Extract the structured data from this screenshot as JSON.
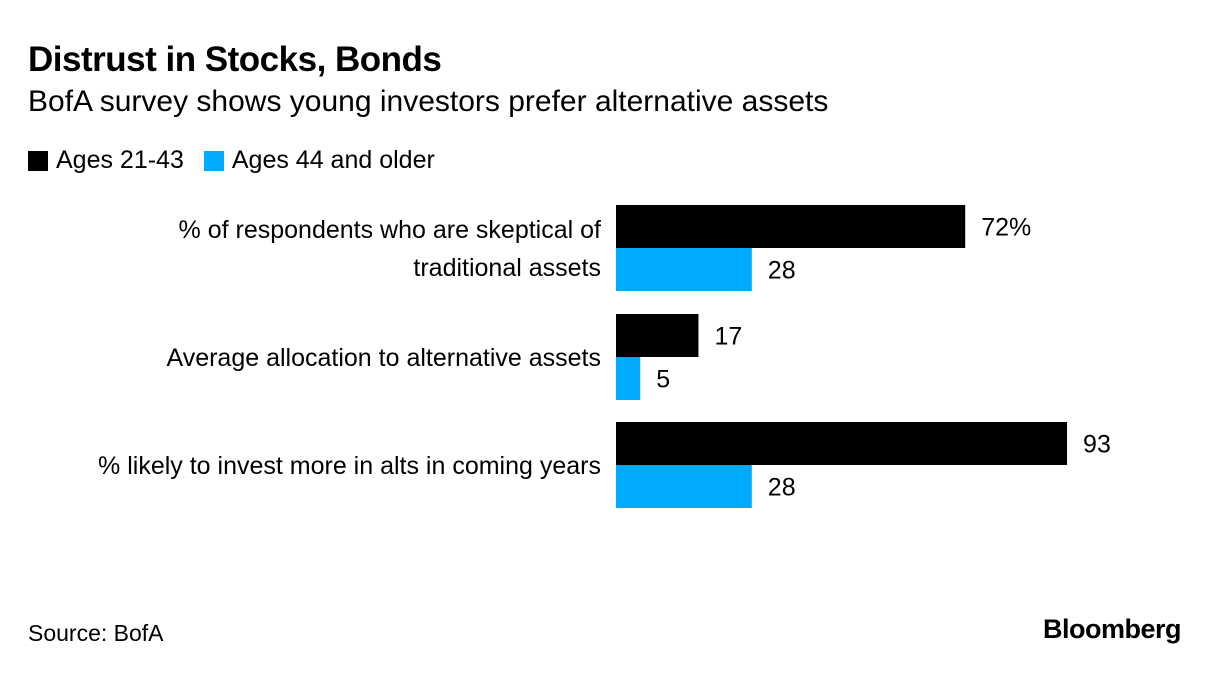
{
  "header": {
    "title": "Distrust in Stocks, Bonds",
    "subtitle": "BofA survey shows young investors prefer alternative assets"
  },
  "legend": [
    {
      "label": "Ages 21-43",
      "color": "#000000"
    },
    {
      "label": "Ages 44 and older",
      "color": "#00aaff"
    }
  ],
  "chart_data": {
    "type": "bar",
    "orientation": "horizontal",
    "categories": [
      [
        "% of respondents who are skeptical of",
        "traditional assets"
      ],
      [
        "Average allocation to alternative assets"
      ],
      [
        "% likely to invest more in alts in coming years"
      ]
    ],
    "series": [
      {
        "name": "Ages 21-43",
        "color": "#000000",
        "values": [
          72,
          17,
          93
        ],
        "labels": [
          "72%",
          "17",
          "93"
        ]
      },
      {
        "name": "Ages 44 and older",
        "color": "#00aaff",
        "values": [
          28,
          5,
          28
        ],
        "labels": [
          "28",
          "5",
          "28"
        ]
      }
    ],
    "xlim": [
      0,
      100
    ],
    "grid": false,
    "legend_position": "top-left"
  },
  "footer": {
    "source": "Source: BofA",
    "logo": "Bloomberg"
  }
}
